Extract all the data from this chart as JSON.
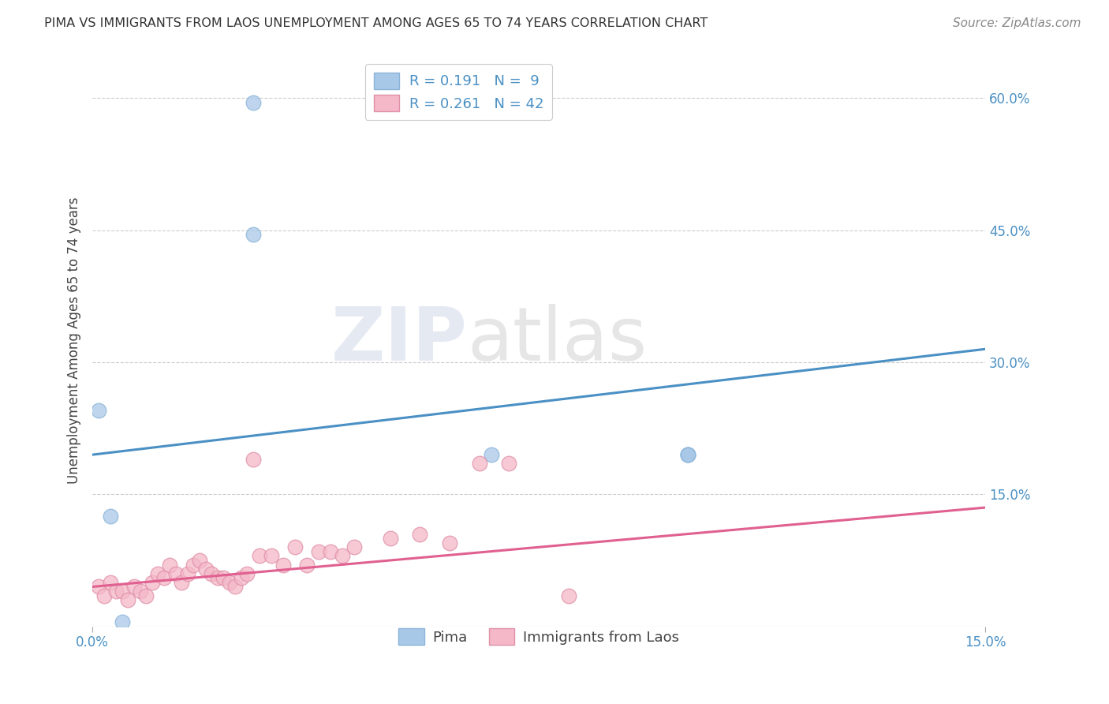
{
  "title": "PIMA VS IMMIGRANTS FROM LAOS UNEMPLOYMENT AMONG AGES 65 TO 74 YEARS CORRELATION CHART",
  "source_text": "Source: ZipAtlas.com",
  "ylabel": "Unemployment Among Ages 65 to 74 years",
  "xlim": [
    0.0,
    0.15
  ],
  "ylim": [
    0.0,
    0.65
  ],
  "xtick_positions": [
    0.0,
    0.15
  ],
  "xticklabels": [
    "0.0%",
    "15.0%"
  ],
  "ytick_positions": [
    0.15,
    0.3,
    0.45,
    0.6
  ],
  "yticklabels": [
    "15.0%",
    "30.0%",
    "45.0%",
    "60.0%"
  ],
  "pima_color": "#a8c8e8",
  "pima_edge_color": "#8ab4d8",
  "pima_line_color": "#4a90c4",
  "laos_color": "#f4b8c8",
  "laos_edge_color": "#e090a8",
  "laos_line_color": "#e06090",
  "pima_R": 0.191,
  "pima_N": 9,
  "laos_R": 0.261,
  "laos_N": 42,
  "legend_label_pima": "Pima",
  "legend_label_laos": "Immigrants from Laos",
  "watermark_zip": "ZIP",
  "watermark_atlas": "atlas",
  "background_color": "#ffffff",
  "pima_x": [
    0.027,
    0.001,
    0.027,
    0.005,
    0.067,
    0.003,
    0.1,
    0.1,
    0.1
  ],
  "pima_y": [
    0.595,
    0.245,
    0.445,
    0.005,
    0.195,
    0.125,
    0.195,
    0.195,
    0.195
  ],
  "laos_x": [
    0.001,
    0.002,
    0.003,
    0.004,
    0.005,
    0.006,
    0.007,
    0.008,
    0.009,
    0.01,
    0.011,
    0.012,
    0.013,
    0.014,
    0.015,
    0.016,
    0.017,
    0.018,
    0.019,
    0.02,
    0.021,
    0.022,
    0.023,
    0.024,
    0.025,
    0.026,
    0.027,
    0.028,
    0.03,
    0.032,
    0.034,
    0.036,
    0.038,
    0.04,
    0.042,
    0.044,
    0.05,
    0.055,
    0.06,
    0.065,
    0.07,
    0.08
  ],
  "laos_y": [
    0.045,
    0.035,
    0.05,
    0.04,
    0.04,
    0.03,
    0.045,
    0.04,
    0.035,
    0.05,
    0.06,
    0.055,
    0.07,
    0.06,
    0.05,
    0.06,
    0.07,
    0.075,
    0.065,
    0.06,
    0.055,
    0.055,
    0.05,
    0.045,
    0.055,
    0.06,
    0.19,
    0.08,
    0.08,
    0.07,
    0.09,
    0.07,
    0.085,
    0.085,
    0.08,
    0.09,
    0.1,
    0.105,
    0.095,
    0.185,
    0.185,
    0.035
  ],
  "pima_trend_x": [
    0.0,
    0.15
  ],
  "pima_trend_y": [
    0.195,
    0.315
  ],
  "laos_trend_x": [
    0.0,
    0.15
  ],
  "laos_trend_y": [
    0.045,
    0.135
  ],
  "grid_color": "#cccccc",
  "grid_yticks": [
    0.15,
    0.3,
    0.45,
    0.6
  ],
  "title_fontsize": 11.5,
  "source_fontsize": 11,
  "ylabel_fontsize": 12,
  "tick_fontsize": 12,
  "legend_fontsize": 13
}
